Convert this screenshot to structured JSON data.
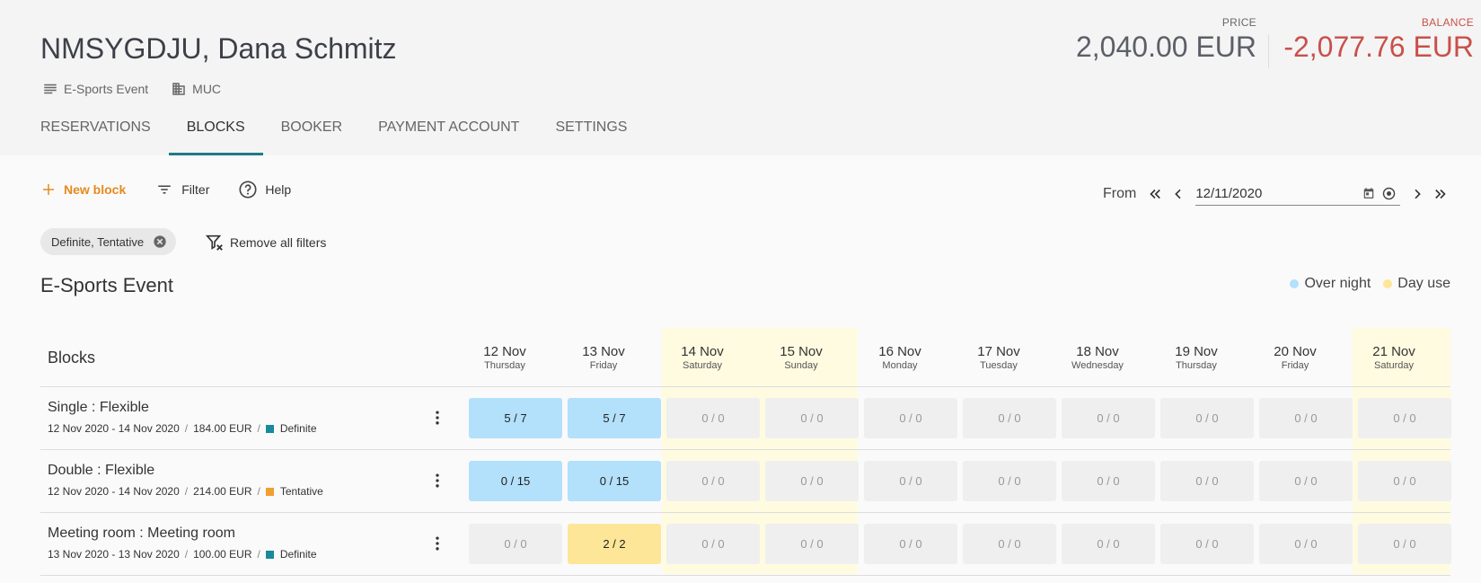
{
  "header": {
    "title": "NMSYGDJU, Dana Schmitz",
    "event_label": "E-Sports Event",
    "property_label": "MUC",
    "price_label": "PRICE",
    "price_value": "2,040.00 EUR",
    "balance_label": "BALANCE",
    "balance_value": "-2,077.76 EUR"
  },
  "tabs": [
    "RESERVATIONS",
    "BLOCKS",
    "BOOKER",
    "PAYMENT ACCOUNT",
    "SETTINGS"
  ],
  "toolbar": {
    "new_block": "New block",
    "filter": "Filter",
    "help": "Help",
    "from_label": "From",
    "date_value": "12/11/2020"
  },
  "filters": {
    "chip_label": "Definite, Tentative",
    "remove_all": "Remove all filters"
  },
  "section": {
    "title": "E-Sports Event",
    "legend_overnight": "Over night",
    "legend_dayuse": "Day use"
  },
  "colors": {
    "accent": "#e68a1e",
    "tab_indicator": "#1f7a8c",
    "balance": "#c9504a",
    "overnight": "#b3e0fb",
    "dayuse": "#fde697",
    "definite": "#1a8a9a",
    "tentative": "#f0a030"
  },
  "grid": {
    "blocks_label": "Blocks",
    "days": [
      {
        "date": "12 Nov",
        "weekday": "Thursday"
      },
      {
        "date": "13 Nov",
        "weekday": "Friday"
      },
      {
        "date": "14 Nov",
        "weekday": "Saturday"
      },
      {
        "date": "15 Nov",
        "weekday": "Sunday"
      },
      {
        "date": "16 Nov",
        "weekday": "Monday"
      },
      {
        "date": "17 Nov",
        "weekday": "Tuesday"
      },
      {
        "date": "18 Nov",
        "weekday": "Wednesday"
      },
      {
        "date": "19 Nov",
        "weekday": "Thursday"
      },
      {
        "date": "20 Nov",
        "weekday": "Friday"
      },
      {
        "date": "21 Nov",
        "weekday": "Saturday"
      }
    ],
    "rows": [
      {
        "name": "Single : Flexible",
        "dates": "12 Nov 2020 - 14 Nov 2020",
        "price": "184.00 EUR",
        "status": "Definite",
        "cells": [
          "5 / 7",
          "5 / 7",
          "0 / 0",
          "0 / 0",
          "0 / 0",
          "0 / 0",
          "0 / 0",
          "0 / 0",
          "0 / 0",
          "0 / 0"
        ]
      },
      {
        "name": "Double : Flexible",
        "dates": "12 Nov 2020 - 14 Nov 2020",
        "price": "214.00 EUR",
        "status": "Tentative",
        "cells": [
          "0 / 15",
          "0 / 15",
          "0 / 0",
          "0 / 0",
          "0 / 0",
          "0 / 0",
          "0 / 0",
          "0 / 0",
          "0 / 0",
          "0 / 0"
        ]
      },
      {
        "name": "Meeting room : Meeting room",
        "dates": "13 Nov 2020 - 13 Nov 2020",
        "price": "100.00 EUR",
        "status": "Definite",
        "cells": [
          "0 / 0",
          "2 / 2",
          "0 / 0",
          "0 / 0",
          "0 / 0",
          "0 / 0",
          "0 / 0",
          "0 / 0",
          "0 / 0",
          "0 / 0"
        ]
      }
    ]
  }
}
